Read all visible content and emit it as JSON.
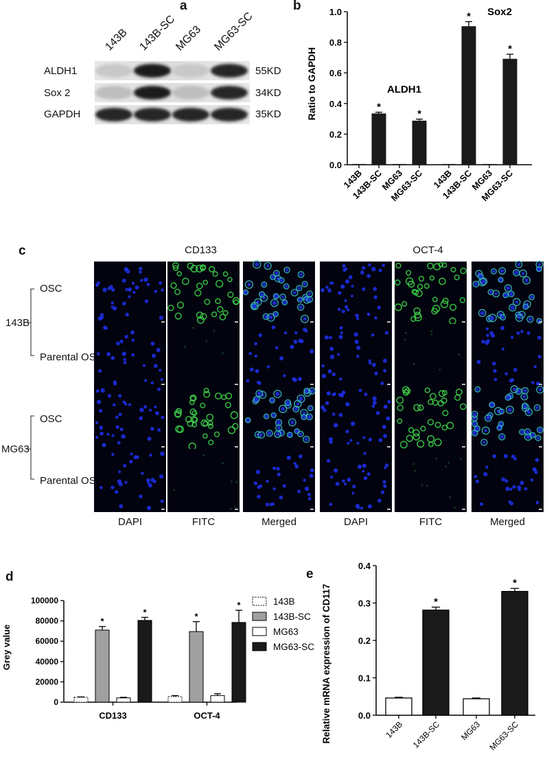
{
  "panels": {
    "a": "a",
    "b": "b",
    "c": "c",
    "d": "d",
    "e": "e"
  },
  "colors": {
    "black_bar": "#1a1a1a",
    "grey_bar": "#a0a0a0",
    "white_bar": "#ffffff",
    "nucleus_blue": "#1c2ee0",
    "fitc_green": "#3fd24a",
    "merged_cyan": "#39b8c8"
  },
  "panel_a": {
    "lanes": [
      "143B",
      "143B-SC",
      "MG63",
      "MG63-SC"
    ],
    "rows": [
      {
        "protein": "ALDH1",
        "weight": "55KD",
        "band_intensity": [
          0.1,
          0.95,
          0.1,
          0.9
        ]
      },
      {
        "protein": "Sox 2",
        "weight": "34KD",
        "band_intensity": [
          0.15,
          0.95,
          0.15,
          0.9
        ]
      },
      {
        "protein": "GAPDH",
        "weight": "35KD",
        "band_intensity": [
          0.9,
          0.9,
          0.9,
          0.9
        ]
      }
    ]
  },
  "panel_c": {
    "markers": [
      "CD133",
      "OCT-4"
    ],
    "channels": [
      "DAPI",
      "FITC",
      "Merged"
    ],
    "cell_lines": [
      {
        "name": "143B",
        "conditions": [
          "OSC",
          "Parental OS"
        ]
      },
      {
        "name": "MG63",
        "conditions": [
          "OSC",
          "Parental OS"
        ]
      }
    ]
  },
  "chart_data": [
    {
      "panel": "b",
      "type": "bar",
      "categories": [
        "143B",
        "143B-SC",
        "MG63",
        "MG63-SC",
        "143B",
        "143B-SC",
        "MG63",
        "MG63-SC"
      ],
      "groups": [
        "ALDH1",
        "Sox2"
      ],
      "values": [
        0.005,
        0.335,
        0.005,
        0.288,
        0.005,
        0.905,
        0.005,
        0.692
      ],
      "errors": [
        0,
        0.008,
        0,
        0.01,
        0,
        0.03,
        0,
        0.03
      ],
      "significant": [
        false,
        true,
        false,
        true,
        false,
        true,
        false,
        true
      ],
      "significance_marker": "*",
      "ylabel": "Ratio to GAPDH",
      "ylim": [
        0,
        1.0
      ],
      "yticks": [
        "0.0",
        "0.2",
        "0.4",
        "0.6",
        "0.8",
        "1.0"
      ],
      "grid": false
    },
    {
      "panel": "d",
      "type": "bar",
      "categories": [
        "CD133",
        "OCT-4"
      ],
      "series": [
        {
          "name": "143B",
          "values": [
            4800,
            5500
          ],
          "errors": [
            400,
            1000
          ]
        },
        {
          "name": "143B-SC",
          "values": [
            71000,
            69500
          ],
          "errors": [
            3500,
            9800
          ]
        },
        {
          "name": "MG63",
          "values": [
            4200,
            6500
          ],
          "errors": [
            600,
            1800
          ]
        },
        {
          "name": "MG63-SC",
          "values": [
            80500,
            78500
          ],
          "errors": [
            3000,
            12000
          ]
        }
      ],
      "significance": {
        "143B-SC": true,
        "MG63-SC": true
      },
      "significance_marker": "*",
      "ylabel": "Grey value",
      "ylim": [
        0,
        100000
      ],
      "yticks": [
        "0",
        "20000",
        "40000",
        "60000",
        "80000",
        "100000"
      ],
      "legend_position": "right",
      "grid": false
    },
    {
      "panel": "e",
      "type": "bar",
      "categories": [
        "143B",
        "143B-SC",
        "MG63",
        "MG63-SC"
      ],
      "values": [
        0.046,
        0.281,
        0.044,
        0.331
      ],
      "errors": [
        0.002,
        0.008,
        0.002,
        0.008
      ],
      "significant": [
        false,
        true,
        false,
        true
      ],
      "significance_marker": "*",
      "ylabel": "Relative mRNA expression of CD117",
      "ylim": [
        0,
        0.4
      ],
      "yticks": [
        "0.0",
        "0.1",
        "0.2",
        "0.3",
        "0.4"
      ],
      "grid": false
    }
  ]
}
